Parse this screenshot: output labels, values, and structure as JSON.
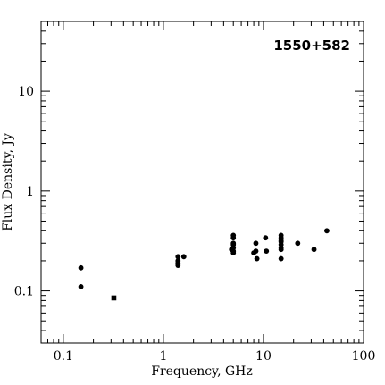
{
  "chart_data": {
    "type": "scatter",
    "title": "1550+582",
    "xlabel": "Frequency, GHz",
    "ylabel": "Flux Density, Jy",
    "x_scale": "log",
    "y_scale": "log",
    "xlim": [
      0.06,
      100
    ],
    "ylim": [
      0.03,
      50
    ],
    "grid": false,
    "x_ticks": [
      {
        "value": 0.1,
        "label": "0.1"
      },
      {
        "value": 1,
        "label": "1"
      },
      {
        "value": 10,
        "label": "10"
      },
      {
        "value": 100,
        "label": "100"
      }
    ],
    "y_ticks": [
      {
        "value": 0.1,
        "label": "0.1"
      },
      {
        "value": 1,
        "label": "1"
      },
      {
        "value": 10,
        "label": "10"
      }
    ],
    "series": [
      {
        "marker": "circle",
        "points": [
          {
            "x": 0.15,
            "y": 0.17
          },
          {
            "x": 0.15,
            "y": 0.11
          },
          {
            "x": 1.4,
            "y": 0.22
          },
          {
            "x": 1.4,
            "y": 0.2
          },
          {
            "x": 1.4,
            "y": 0.19
          },
          {
            "x": 1.4,
            "y": 0.18
          },
          {
            "x": 1.6,
            "y": 0.22
          },
          {
            "x": 5.0,
            "y": 0.36
          },
          {
            "x": 5.0,
            "y": 0.34
          },
          {
            "x": 5.0,
            "y": 0.3
          },
          {
            "x": 5.0,
            "y": 0.29
          },
          {
            "x": 5.0,
            "y": 0.27
          },
          {
            "x": 4.8,
            "y": 0.26
          },
          {
            "x": 5.0,
            "y": 0.25
          },
          {
            "x": 5.0,
            "y": 0.24
          },
          {
            "x": 8.4,
            "y": 0.3
          },
          {
            "x": 8.4,
            "y": 0.25
          },
          {
            "x": 8.0,
            "y": 0.24
          },
          {
            "x": 8.6,
            "y": 0.21
          },
          {
            "x": 10.5,
            "y": 0.34
          },
          {
            "x": 10.7,
            "y": 0.25
          },
          {
            "x": 15,
            "y": 0.36
          },
          {
            "x": 15,
            "y": 0.34
          },
          {
            "x": 15,
            "y": 0.32
          },
          {
            "x": 15,
            "y": 0.31
          },
          {
            "x": 15,
            "y": 0.29
          },
          {
            "x": 15,
            "y": 0.27
          },
          {
            "x": 15,
            "y": 0.26
          },
          {
            "x": 15,
            "y": 0.21
          },
          {
            "x": 22,
            "y": 0.3
          },
          {
            "x": 32,
            "y": 0.26
          },
          {
            "x": 43,
            "y": 0.4
          }
        ]
      },
      {
        "marker": "square",
        "points": [
          {
            "x": 0.32,
            "y": 0.085
          }
        ]
      }
    ]
  }
}
